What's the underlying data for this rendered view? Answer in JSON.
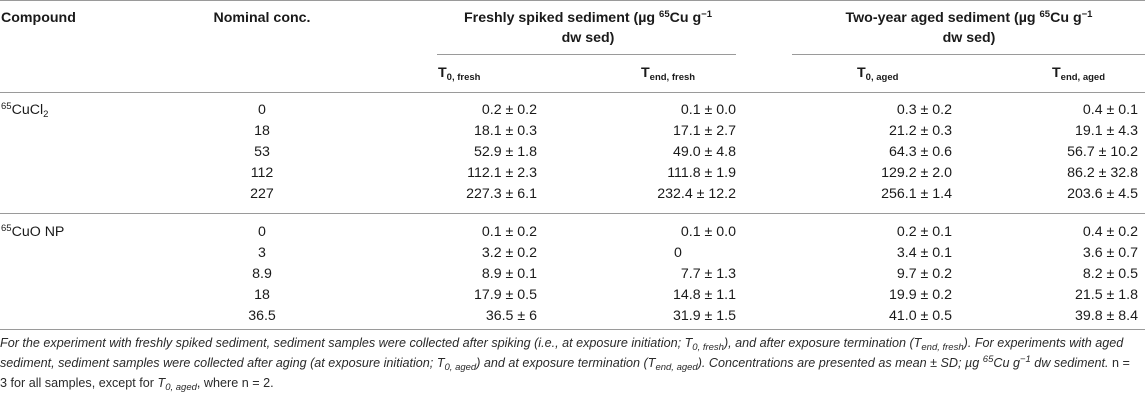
{
  "header": {
    "compound": "Compound",
    "nominal": "Nominal conc.",
    "fresh_group_line1": "Freshly spiked sediment (µg ",
    "fresh_group_sup": "65",
    "fresh_group_mid": "Cu g",
    "fresh_group_sup2": "−1",
    "fresh_group_line2": "dw sed)",
    "aged_group_line1": "Two-year aged sediment (µg ",
    "aged_group_sup": "65",
    "aged_group_mid": "Cu g",
    "aged_group_sup2": "−1",
    "aged_group_line2": "dw sed)",
    "t0_fresh_main": "T",
    "t0_fresh_sub": "0, fresh",
    "tend_fresh_main": "T",
    "tend_fresh_sub": "end, fresh",
    "t0_aged_main": "T",
    "t0_aged_sub": "0, aged",
    "tend_aged_main": "T",
    "tend_aged_sub": "end, aged"
  },
  "groups": [
    {
      "compound_sup": "65",
      "compound_main": "CuCl",
      "compound_sub": "2",
      "compound_tail": "",
      "rows": [
        {
          "nominal": "0",
          "t0_fresh": "0.2 ± 0.2",
          "tend_fresh": "0.1 ± 0.0",
          "t0_aged": "0.3 ± 0.2",
          "tend_aged": "0.4 ± 0.1"
        },
        {
          "nominal": "18",
          "t0_fresh": "18.1 ± 0.3",
          "tend_fresh": "17.1 ± 2.7",
          "t0_aged": "21.2 ± 0.3",
          "tend_aged": "19.1 ± 4.3"
        },
        {
          "nominal": "53",
          "t0_fresh": "52.9 ± 1.8",
          "tend_fresh": "49.0 ± 4.8",
          "t0_aged": "64.3 ± 0.6",
          "tend_aged": "56.7 ± 10.2"
        },
        {
          "nominal": "112",
          "t0_fresh": "112.1 ± 2.3",
          "tend_fresh": "111.8 ± 1.9",
          "t0_aged": "129.2 ± 2.0",
          "tend_aged": "86.2 ± 32.8"
        },
        {
          "nominal": "227",
          "t0_fresh": "227.3 ± 6.1",
          "tend_fresh": "232.4 ± 12.2",
          "t0_aged": "256.1 ± 1.4",
          "tend_aged": "203.6 ± 4.5"
        }
      ]
    },
    {
      "compound_sup": "65",
      "compound_main": "CuO NP",
      "compound_sub": "",
      "compound_tail": "",
      "rows": [
        {
          "nominal": "0",
          "t0_fresh": "0.1 ± 0.2",
          "tend_fresh": "0.1 ± 0.0",
          "t0_aged": "0.2 ± 0.1",
          "tend_aged": "0.4 ± 0.2"
        },
        {
          "nominal": "3",
          "t0_fresh": "3.2 ± 0.2",
          "tend_fresh": "0",
          "t0_aged": "3.4 ± 0.1",
          "tend_aged": "3.6 ± 0.7"
        },
        {
          "nominal": "8.9",
          "t0_fresh": "8.9 ± 0.1",
          "tend_fresh": "7.7 ± 1.3",
          "t0_aged": "9.7 ± 0.2",
          "tend_aged": "8.2 ± 0.5"
        },
        {
          "nominal": "18",
          "t0_fresh": "17.9 ± 0.5",
          "tend_fresh": "14.8 ± 1.1",
          "t0_aged": "19.9 ± 0.2",
          "tend_aged": "21.5 ± 1.8"
        },
        {
          "nominal": "36.5",
          "t0_fresh": "36.5 ± 6",
          "tend_fresh": "31.9 ± 1.5",
          "t0_aged": "41.0 ± 0.5",
          "tend_aged": "39.8 ± 8.4"
        }
      ]
    }
  ],
  "footnote": {
    "p1": "For the experiment with freshly spiked sediment, sediment samples were collected after spiking (i.e., at exposure initiation; ",
    "p1_T": "T",
    "p1_sub": "0, fresh",
    "p2": "), and after exposure termination (",
    "p2_T": "T",
    "p2_sub": "end, fresh",
    "p3": "). For experiments with aged sediment, sediment samples were collected after aging (at exposure initiation; ",
    "p3_T": "T",
    "p3_sub": "0, aged",
    "p4": ") and at exposure termination (",
    "p4_T": "T",
    "p4_sub": "end, aged",
    "p5": "). Concentrations are presented as mean ± SD; µg ",
    "p5_sup": "65",
    "p6": "Cu g",
    "p6_sup": "−1",
    "p7": " dw sediment. ",
    "p8": "n = 3 for all samples, except for ",
    "p8_T": "T",
    "p8_sub": "0, aged",
    "p9": ", where ",
    "p10": "n = 2."
  }
}
